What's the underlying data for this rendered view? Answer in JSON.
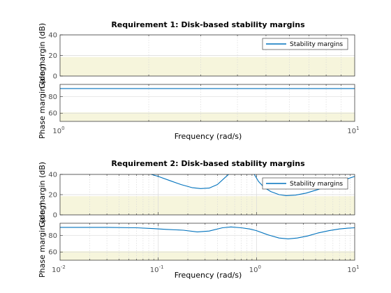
{
  "chart_data": [
    {
      "type": "line",
      "title": "Requirement 1: Disk-based stability margins",
      "xlabel": "Frequency (rad/s)",
      "xscale": "log",
      "xlim": [
        1,
        10
      ],
      "xticks": [
        {
          "base": "10",
          "exp": "0"
        },
        {
          "base": "10",
          "exp": "1"
        }
      ],
      "legend": {
        "placement": "top-right",
        "entries": [
          "Stability margins"
        ]
      },
      "grid": true,
      "colors": {
        "line": "#0072bd",
        "bound": "#f6f5dc",
        "grid": "#d9d9d9"
      },
      "panels": [
        {
          "ylabel": "Gain margin (dB)",
          "ylim": [
            0,
            40
          ],
          "yticks": [
            "0",
            "20",
            "40"
          ],
          "bound": [
            0,
            18.5
          ],
          "series": [
            {
              "name": "Stability margins",
              "x": [
                1,
                10
              ],
              "y": [
                null,
                null
              ]
            }
          ]
        },
        {
          "ylabel": "Phase margin (deg)",
          "ylim": [
            50,
            95
          ],
          "yticks": [
            "60",
            "80"
          ],
          "bound": [
            50,
            61
          ],
          "series": [
            {
              "name": "Stability margins",
              "x": [
                1,
                10
              ],
              "y": [
                90,
                90
              ]
            }
          ]
        }
      ]
    },
    {
      "type": "line",
      "title": "Requirement 2: Disk-based stability margins",
      "xlabel": "Frequency (rad/s)",
      "xscale": "log",
      "xlim": [
        0.01,
        10
      ],
      "xticks": [
        {
          "base": "10",
          "exp": "-2"
        },
        {
          "base": "10",
          "exp": "-1"
        },
        {
          "base": "10",
          "exp": "0"
        },
        {
          "base": "10",
          "exp": "1"
        }
      ],
      "legend": {
        "placement": "top-right",
        "entries": [
          "Stability margins"
        ]
      },
      "grid": true,
      "colors": {
        "line": "#0072bd",
        "bound": "#f6f5dc",
        "grid": "#d9d9d9"
      },
      "panels": [
        {
          "ylabel": "Gain margin (dB)",
          "ylim": [
            0,
            40
          ],
          "yticks": [
            "0",
            "20",
            "40"
          ],
          "bound": [
            0,
            18.5
          ],
          "series": [
            {
              "name": "Stability margins",
              "x": [
                0.085,
                0.1,
                0.13,
                0.17,
                0.22,
                0.27,
                0.33,
                0.4,
                0.48,
                0.52
              ],
              "y": [
                40,
                38,
                34,
                30,
                27,
                26,
                26.5,
                30,
                37,
                40
              ]
            },
            {
              "name": "Stability margins",
              "x": [
                0.95,
                1.05,
                1.2,
                1.4,
                1.7,
                2.0,
                2.5,
                3.2,
                4.2,
                5.5,
                7.5,
                10
              ],
              "y": [
                40,
                33,
                27,
                23,
                20,
                19,
                19.5,
                21.5,
                25,
                29,
                34,
                38
              ]
            }
          ]
        },
        {
          "ylabel": "Phase margin (deg)",
          "ylim": [
            50,
            95
          ],
          "yticks": [
            "60",
            "80"
          ],
          "bound": [
            50,
            61
          ],
          "series": [
            {
              "name": "Stability margins",
              "x": [
                0.01,
                0.03,
                0.06,
                0.09,
                0.12,
                0.18,
                0.25,
                0.33,
                0.45,
                0.55,
                0.7,
                0.85,
                1.0,
                1.3,
                1.7,
                2.1,
                2.6,
                3.3,
                4.2,
                5.5,
                7,
                8.5,
                10
              ],
              "y": [
                90,
                90,
                89.5,
                88.5,
                87.5,
                86.5,
                84.5,
                85.5,
                89.5,
                90.5,
                89.5,
                88,
                86,
                81,
                77,
                76,
                77,
                79.5,
                83,
                86,
                88,
                89,
                89.5
              ]
            }
          ]
        }
      ]
    }
  ]
}
